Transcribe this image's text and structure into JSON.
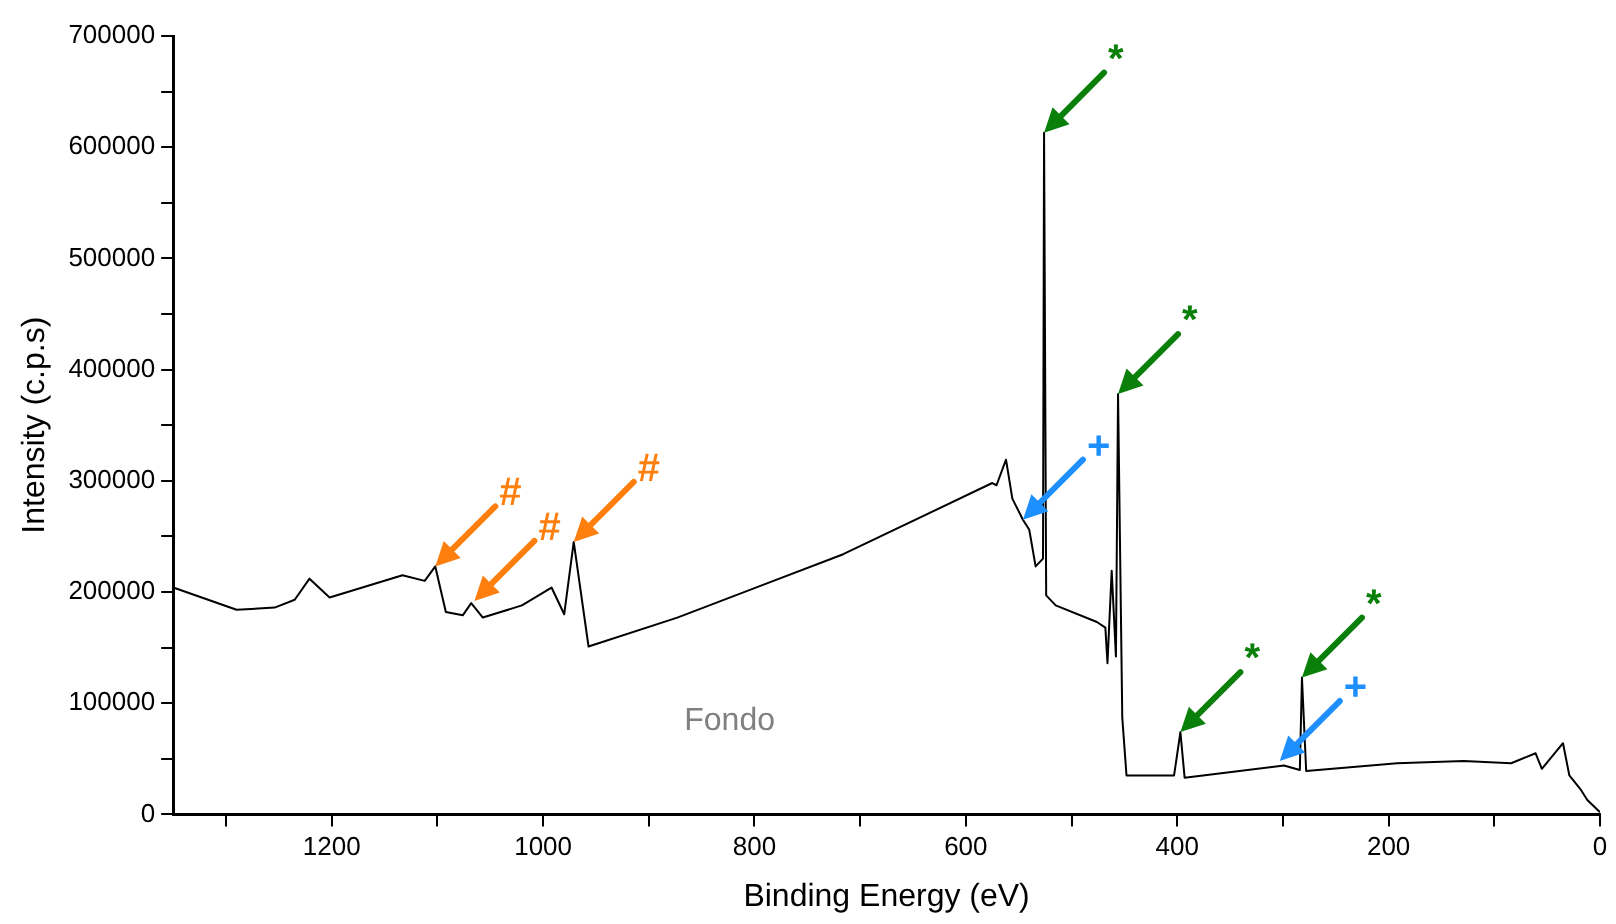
{
  "chart_data": {
    "type": "line",
    "xlabel": "Binding Energy (eV)",
    "ylabel": "Intensity (c.p.s)",
    "xlim": [
      1350,
      0
    ],
    "xticks": [
      {
        "value": 1300,
        "label": null
      },
      1200,
      {
        "value": 1100,
        "label": null
      },
      1000,
      {
        "value": 900,
        "label": null
      },
      800,
      {
        "value": 700,
        "label": null
      },
      600,
      {
        "value": 500,
        "label": null
      },
      400,
      {
        "value": 300,
        "label": null
      },
      200,
      {
        "value": 100,
        "label": null
      },
      0
    ],
    "ylim": [
      0,
      700000
    ],
    "yticks": [
      0,
      {
        "value": 50000,
        "label": null
      },
      100000,
      {
        "value": 150000,
        "label": null
      },
      200000,
      {
        "value": 250000,
        "label": null
      },
      300000,
      {
        "value": 350000,
        "label": null
      },
      400000,
      {
        "value": 450000,
        "label": null
      },
      500000,
      {
        "value": 550000,
        "label": null
      },
      600000,
      {
        "value": 650000,
        "label": null
      },
      700000
    ],
    "grid": false,
    "legend": false,
    "marker": "none",
    "line_style": "solid",
    "series": [
      {
        "color": "#000000",
        "x": [
          1350,
          1323,
          1290,
          1254,
          1235,
          1221,
          1202,
          1133,
          1112,
          1102,
          1092,
          1076,
          1068,
          1057,
          1020,
          992,
          980,
          971,
          957,
          873,
          716,
          575,
          571,
          562,
          556,
          546,
          540,
          534,
          527,
          526,
          524,
          515,
          476,
          468,
          466,
          462,
          458,
          456,
          452,
          448,
          403,
          397,
          393,
          299,
          284,
          282,
          278,
          192,
          129,
          84,
          61,
          55,
          35,
          29,
          18,
          12,
          0
        ],
        "values": [
          204000,
          195000,
          184000,
          186000,
          193000,
          212000,
          195000,
          215000,
          210000,
          223000,
          182000,
          179000,
          190000,
          177000,
          188000,
          204000,
          180000,
          245000,
          151000,
          177000,
          234000,
          298000,
          296000,
          319000,
          284000,
          265000,
          256000,
          223000,
          230000,
          613000,
          197000,
          188000,
          173000,
          168000,
          136000,
          219000,
          142000,
          378000,
          87000,
          35000,
          35000,
          74000,
          33000,
          44000,
          40000,
          123000,
          39000,
          46000,
          48000,
          46000,
          55000,
          41000,
          64000,
          35000,
          22000,
          13000,
          2000
        ]
      }
    ],
    "annotations": [
      {
        "text": "*",
        "x": 526,
        "y": 613000
      },
      {
        "text": "*",
        "x": 456,
        "y": 378000
      },
      {
        "text": "*",
        "x": 397,
        "y": 74000
      },
      {
        "text": "*",
        "x": 282,
        "y": 123000
      },
      {
        "text": "+",
        "x": 546,
        "y": 265000
      },
      {
        "text": "+",
        "x": 303,
        "y": 48000
      },
      {
        "text": "#",
        "x": 1102,
        "y": 223000
      },
      {
        "text": "#",
        "x": 1065,
        "y": 192000
      },
      {
        "text": "#",
        "x": 971,
        "y": 245000
      },
      "Fondo"
    ]
  }
}
